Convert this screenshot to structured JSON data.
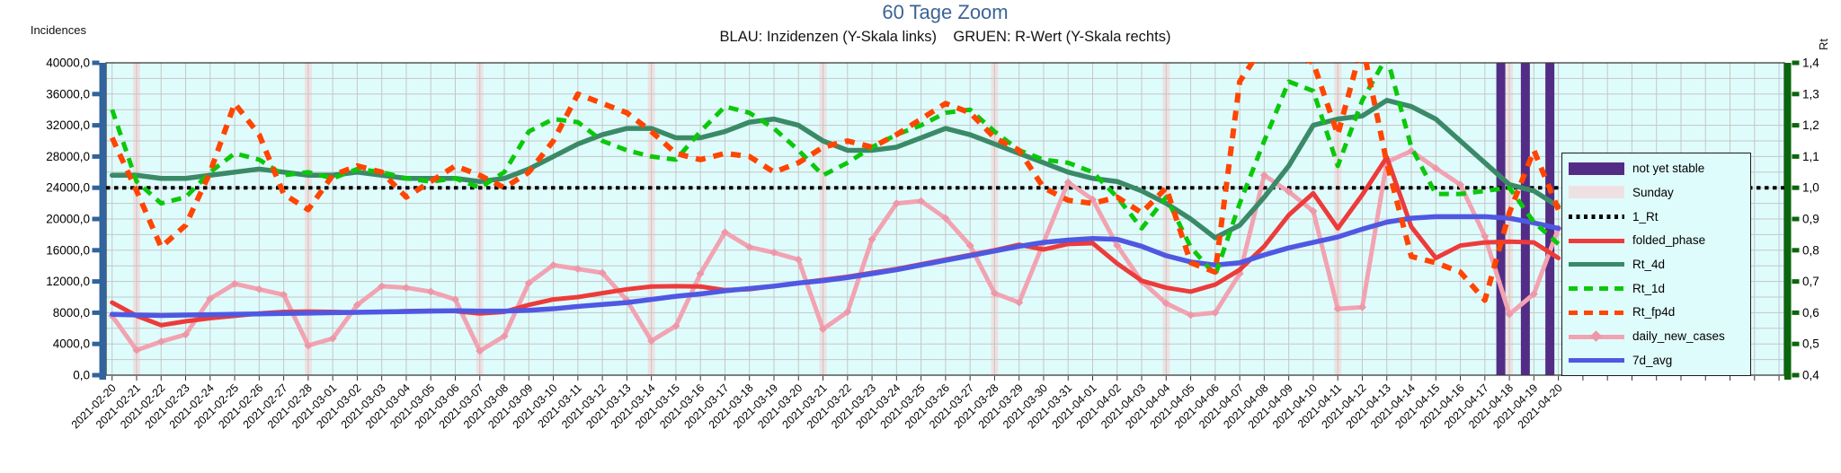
{
  "title": "60 Tage Zoom",
  "subtitle": "BLAU: Inzidenzen (Y-Skala links)    GRUEN: R-Wert (Y-Skala rechts)",
  "left_axis": {
    "label": "Incidences",
    "color": "#31639C",
    "ticks": [
      "40000,0",
      "36000,0",
      "32000,0",
      "28000,0",
      "24000,0",
      "20000,0",
      "16000,0",
      "12000,0",
      "8000,0",
      "4000,0",
      "0,0"
    ]
  },
  "right_axis": {
    "label": "Rt",
    "color": "#0A660A",
    "ticks": [
      "1,4",
      "1,3",
      "1,2",
      "1,1",
      "1,0",
      "0,9",
      "0,8",
      "0,7",
      "0,6",
      "0,5",
      "0,4"
    ]
  },
  "legend": {
    "items": [
      {
        "label": "not yet stable",
        "style": "block",
        "color": "#532C85"
      },
      {
        "label": "Sunday",
        "style": "block",
        "color": "#EFE1E1"
      },
      {
        "label": "1_Rt",
        "style": "dotted",
        "color": "#000000"
      },
      {
        "label": "folded_phase",
        "style": "solid",
        "color": "#ED3B3B"
      },
      {
        "label": "Rt_4d",
        "style": "solid",
        "color": "#3A8A68"
      },
      {
        "label": "Rt_1d",
        "style": "dashed",
        "color": "#0BC80B"
      },
      {
        "label": "Rt_fp4d",
        "style": "dashed",
        "color": "#FF4500"
      },
      {
        "label": "daily_new_cases",
        "style": "solid-diamond",
        "color": "#F2A3B1"
      },
      {
        "label": "7d_avg",
        "style": "solid",
        "color": "#4F58E2"
      }
    ]
  },
  "chart_data": {
    "type": "line",
    "title": "60 Tage Zoom",
    "grid": true,
    "plot_bg": "#DFFCFC",
    "grid_color": "#C6C6C6",
    "legend_position": "right-inside",
    "left_ylim": [
      0,
      40000
    ],
    "right_ylim": [
      0.4,
      1.4
    ],
    "x_slots": 69,
    "x": [
      "2021-02-20",
      "2021-02-21",
      "2021-02-22",
      "2021-02-23",
      "2021-02-24",
      "2021-02-25",
      "2021-02-26",
      "2021-02-27",
      "2021-02-28",
      "2021-03-01",
      "2021-03-02",
      "2021-03-03",
      "2021-03-04",
      "2021-03-05",
      "2021-03-06",
      "2021-03-07",
      "2021-03-08",
      "2021-03-09",
      "2021-03-10",
      "2021-03-11",
      "2021-03-12",
      "2021-03-13",
      "2021-03-14",
      "2021-03-15",
      "2021-03-16",
      "2021-03-17",
      "2021-03-18",
      "2021-03-19",
      "2021-03-20",
      "2021-03-21",
      "2021-03-22",
      "2021-03-23",
      "2021-03-24",
      "2021-03-25",
      "2021-03-26",
      "2021-03-27",
      "2021-03-28",
      "2021-03-29",
      "2021-03-30",
      "2021-03-31",
      "2021-04-01",
      "2021-04-02",
      "2021-04-03",
      "2021-04-04",
      "2021-04-05",
      "2021-04-06",
      "2021-04-07",
      "2021-04-08",
      "2021-04-09",
      "2021-04-10",
      "2021-04-11",
      "2021-04-12",
      "2021-04-13",
      "2021-04-14",
      "2021-04-15",
      "2021-04-16",
      "2021-04-17",
      "2021-04-18",
      "2021-04-19",
      "2021-04-20"
    ],
    "sunday_bands": [
      "2021-02-21",
      "2021-02-28",
      "2021-03-07",
      "2021-03-14",
      "2021-03-21",
      "2021-03-28",
      "2021-04-04",
      "2021-04-11",
      "2021-04-18"
    ],
    "not_yet_stable": [
      "2021-04-18",
      "2021-04-19",
      "2021-04-20"
    ],
    "reference_line": {
      "name": "1_Rt",
      "axis": "right",
      "value": 1.0,
      "color": "#000000"
    },
    "series": [
      {
        "name": "daily_new_cases",
        "axis": "left",
        "color": "#F2A3B1",
        "marker": "diamond",
        "dash": null,
        "width": 5,
        "values": [
          7600,
          3200,
          4300,
          5200,
          9800,
          11700,
          11000,
          10300,
          3800,
          4700,
          9000,
          11400,
          11200,
          10700,
          9700,
          3100,
          5000,
          11800,
          14100,
          13600,
          13100,
          9600,
          4400,
          6300,
          13000,
          18300,
          16400,
          15700,
          14800,
          5900,
          8100,
          17400,
          22000,
          22300,
          20100,
          16600,
          10500,
          9300,
          17000,
          24700,
          22500,
          16600,
          12000,
          9200,
          7700,
          8000,
          13000,
          25600,
          23500,
          21000,
          8500,
          8700,
          27300,
          28700,
          26500,
          24400,
          17800,
          7800,
          10400,
          18800
        ]
      },
      {
        "name": "folded_phase",
        "axis": "left",
        "color": "#ED3B3B",
        "marker": null,
        "dash": null,
        "width": 5,
        "values": [
          9300,
          7600,
          6400,
          6900,
          7300,
          7600,
          7900,
          8100,
          8150,
          8100,
          8050,
          8100,
          8200,
          8250,
          8200,
          7900,
          8100,
          9000,
          9700,
          10000,
          10500,
          11000,
          11350,
          11400,
          11350,
          10900,
          11000,
          11400,
          11800,
          12200,
          12600,
          13100,
          13600,
          14200,
          14800,
          15400,
          16000,
          16700,
          16100,
          16800,
          16900,
          14300,
          12100,
          11200,
          10700,
          11600,
          13500,
          16500,
          20500,
          23300,
          18800,
          23100,
          27900,
          19000,
          15000,
          16600,
          17000,
          17100,
          17000,
          15000
        ]
      },
      {
        "name": "7d_avg",
        "axis": "left",
        "color": "#4F58E2",
        "marker": null,
        "dash": null,
        "width": 5.5,
        "values": [
          7800,
          7700,
          7650,
          7700,
          7750,
          7800,
          7850,
          7900,
          7950,
          8000,
          8050,
          8100,
          8150,
          8200,
          8250,
          8200,
          8200,
          8300,
          8500,
          8800,
          9050,
          9300,
          9700,
          10100,
          10400,
          10800,
          11100,
          11400,
          11800,
          12100,
          12500,
          13000,
          13500,
          14100,
          14700,
          15300,
          15900,
          16500,
          17000,
          17300,
          17500,
          17400,
          16500,
          15300,
          14500,
          14100,
          14400,
          15400,
          16300,
          17000,
          17700,
          18700,
          19600,
          20100,
          20300,
          20300,
          20300,
          20100,
          19500,
          18800
        ]
      },
      {
        "name": "Rt_4d",
        "axis": "right",
        "color": "#3A8A68",
        "marker": null,
        "dash": null,
        "width": 5.5,
        "values": [
          1.04,
          1.04,
          1.03,
          1.03,
          1.04,
          1.05,
          1.06,
          1.05,
          1.04,
          1.04,
          1.05,
          1.04,
          1.03,
          1.03,
          1.03,
          1.02,
          1.03,
          1.06,
          1.1,
          1.14,
          1.17,
          1.19,
          1.19,
          1.16,
          1.16,
          1.18,
          1.21,
          1.22,
          1.2,
          1.15,
          1.12,
          1.12,
          1.13,
          1.16,
          1.19,
          1.17,
          1.14,
          1.11,
          1.08,
          1.05,
          1.03,
          1.02,
          0.99,
          0.95,
          0.9,
          0.84,
          0.88,
          0.97,
          1.07,
          1.2,
          1.22,
          1.23,
          1.28,
          1.26,
          1.22,
          1.15,
          1.08,
          1.01,
          0.99,
          0.94
        ]
      },
      {
        "name": "Rt_1d",
        "axis": "right",
        "color": "#0BC80B",
        "marker": null,
        "dash": "11 8",
        "width": 5,
        "values": [
          1.25,
          1.02,
          0.95,
          0.97,
          1.05,
          1.11,
          1.09,
          1.04,
          1.05,
          1.03,
          1.06,
          1.05,
          1.03,
          1.02,
          1.03,
          1.0,
          1.05,
          1.18,
          1.22,
          1.21,
          1.15,
          1.12,
          1.1,
          1.09,
          1.18,
          1.26,
          1.24,
          1.19,
          1.12,
          1.04,
          1.08,
          1.13,
          1.17,
          1.2,
          1.24,
          1.25,
          1.18,
          1.12,
          1.09,
          1.08,
          1.05,
          0.97,
          0.87,
          0.97,
          0.81,
          0.72,
          0.95,
          1.15,
          1.34,
          1.31,
          1.07,
          1.28,
          1.42,
          1.13,
          0.98,
          0.98,
          0.99,
          1.0,
          0.89,
          0.82
        ]
      },
      {
        "name": "Rt_fp4d",
        "axis": "right",
        "color": "#FF4500",
        "marker": null,
        "dash": "11 9",
        "width": 6,
        "values": [
          1.16,
          0.99,
          0.81,
          0.88,
          1.05,
          1.27,
          1.17,
          0.98,
          0.93,
          1.04,
          1.07,
          1.05,
          0.97,
          1.02,
          1.07,
          1.04,
          1.0,
          1.05,
          1.15,
          1.3,
          1.27,
          1.24,
          1.18,
          1.11,
          1.09,
          1.11,
          1.1,
          1.05,
          1.08,
          1.13,
          1.15,
          1.13,
          1.17,
          1.22,
          1.27,
          1.24,
          1.16,
          1.12,
          1.0,
          0.96,
          0.95,
          0.97,
          0.92,
          1.0,
          0.76,
          0.73,
          1.34,
          1.46,
          1.44,
          1.4,
          1.17,
          1.46,
          1.08,
          0.78,
          0.76,
          0.73,
          0.64,
          0.92,
          1.12,
          0.93
        ]
      }
    ]
  }
}
